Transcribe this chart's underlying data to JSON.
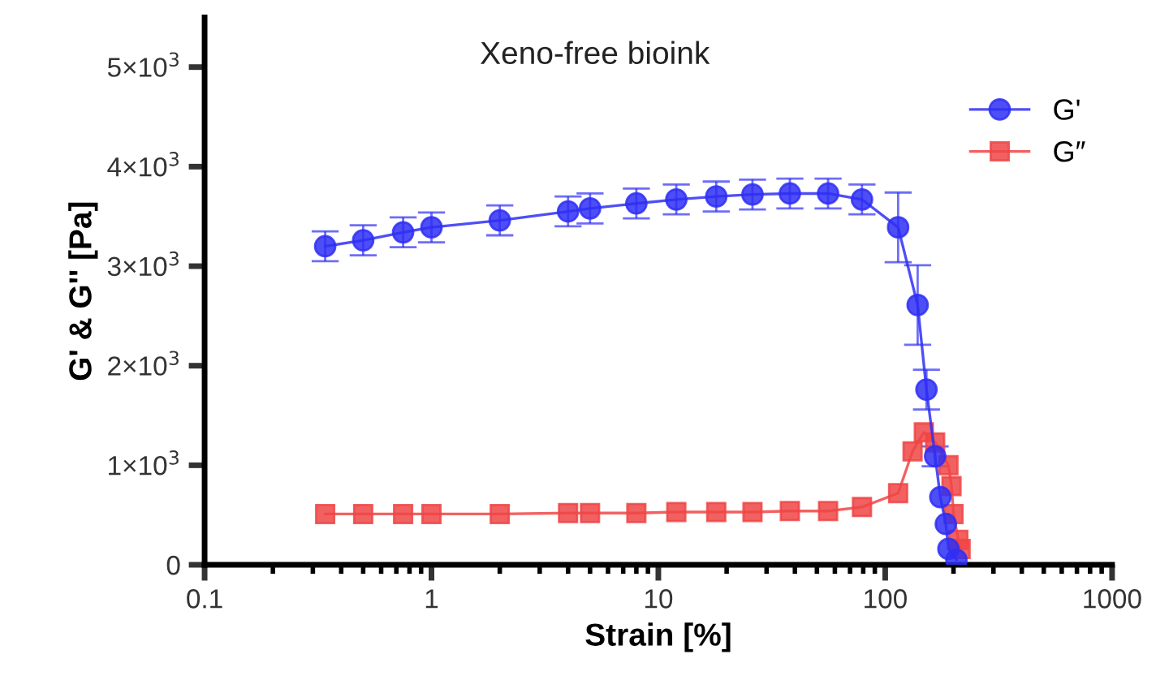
{
  "chart_data": {
    "type": "line",
    "title": "Xeno-free bioink",
    "xlabel": "Strain [%]",
    "ylabel": "G' & G'' [Pa]",
    "log": "x",
    "xlim": [
      0.1,
      1000
    ],
    "xticks": [
      0.1,
      1,
      10,
      100,
      1000
    ],
    "ylim": [
      0,
      5500
    ],
    "yticks": [
      0,
      {
        "value": 1000,
        "label": "1×10$^{3}$"
      },
      {
        "value": 2000,
        "label": "2×10$^{3}$"
      },
      {
        "value": 3000,
        "label": "3×10$^{3}$"
      },
      {
        "value": 4000,
        "label": "4×10$^{3}$"
      },
      {
        "value": 5000,
        "label": "5×10$^{3}$"
      }
    ],
    "grid": false,
    "legend": "top right",
    "line_style": "solid",
    "series": [
      {
        "name": "G'",
        "color": "#2f2ff5",
        "marker": "circle",
        "x": [
          0.34,
          0.5,
          0.75,
          1.0,
          2.0,
          4.0,
          5.0,
          8.0,
          12,
          18,
          26,
          38,
          56,
          79,
          114,
          139,
          152,
          166,
          175,
          185,
          190,
          206
        ],
        "values": [
          3200,
          3260,
          3340,
          3390,
          3460,
          3550,
          3580,
          3630,
          3670,
          3700,
          3720,
          3730,
          3730,
          3670,
          3390,
          2610,
          1760,
          1090,
          680,
          410,
          160,
          50
        ],
        "errors": [
          150,
          150,
          150,
          150,
          150,
          150,
          150,
          150,
          150,
          150,
          150,
          150,
          150,
          150,
          350,
          400,
          200,
          100,
          null,
          null,
          null,
          null
        ]
      },
      {
        "name": "G″",
        "color": "#f04545",
        "marker": "square",
        "x": [
          0.34,
          0.5,
          0.75,
          1.0,
          2.0,
          4.0,
          5.0,
          8.0,
          12,
          18,
          26,
          38,
          56,
          79,
          114,
          132,
          148,
          166,
          190,
          196,
          200,
          210,
          215
        ],
        "values": [
          510,
          510,
          510,
          510,
          510,
          520,
          520,
          520,
          530,
          530,
          530,
          540,
          540,
          580,
          720,
          1140,
          1330,
          1230,
          1000,
          790,
          510,
          250,
          160
        ]
      }
    ]
  }
}
